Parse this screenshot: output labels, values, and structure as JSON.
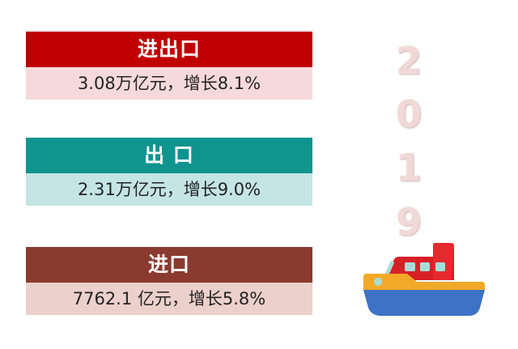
{
  "cards": [
    {
      "title": "进出口",
      "detail": "3.08万亿元，增长8.1%",
      "header_color": "#c00000",
      "body_color": "#f6dadb"
    },
    {
      "title": "出 口",
      "detail": "2.31万亿元，增长9.0%",
      "header_color": "#0f9490",
      "body_color": "#c4e5e4"
    },
    {
      "title": "进口",
      "detail": "7762.1 亿元，增长5.8%",
      "header_color": "#8b3a30",
      "body_color": "#ecd0cb"
    }
  ],
  "year_digits": [
    "2",
    "0",
    "1",
    "9"
  ],
  "icon": "ship-icon"
}
